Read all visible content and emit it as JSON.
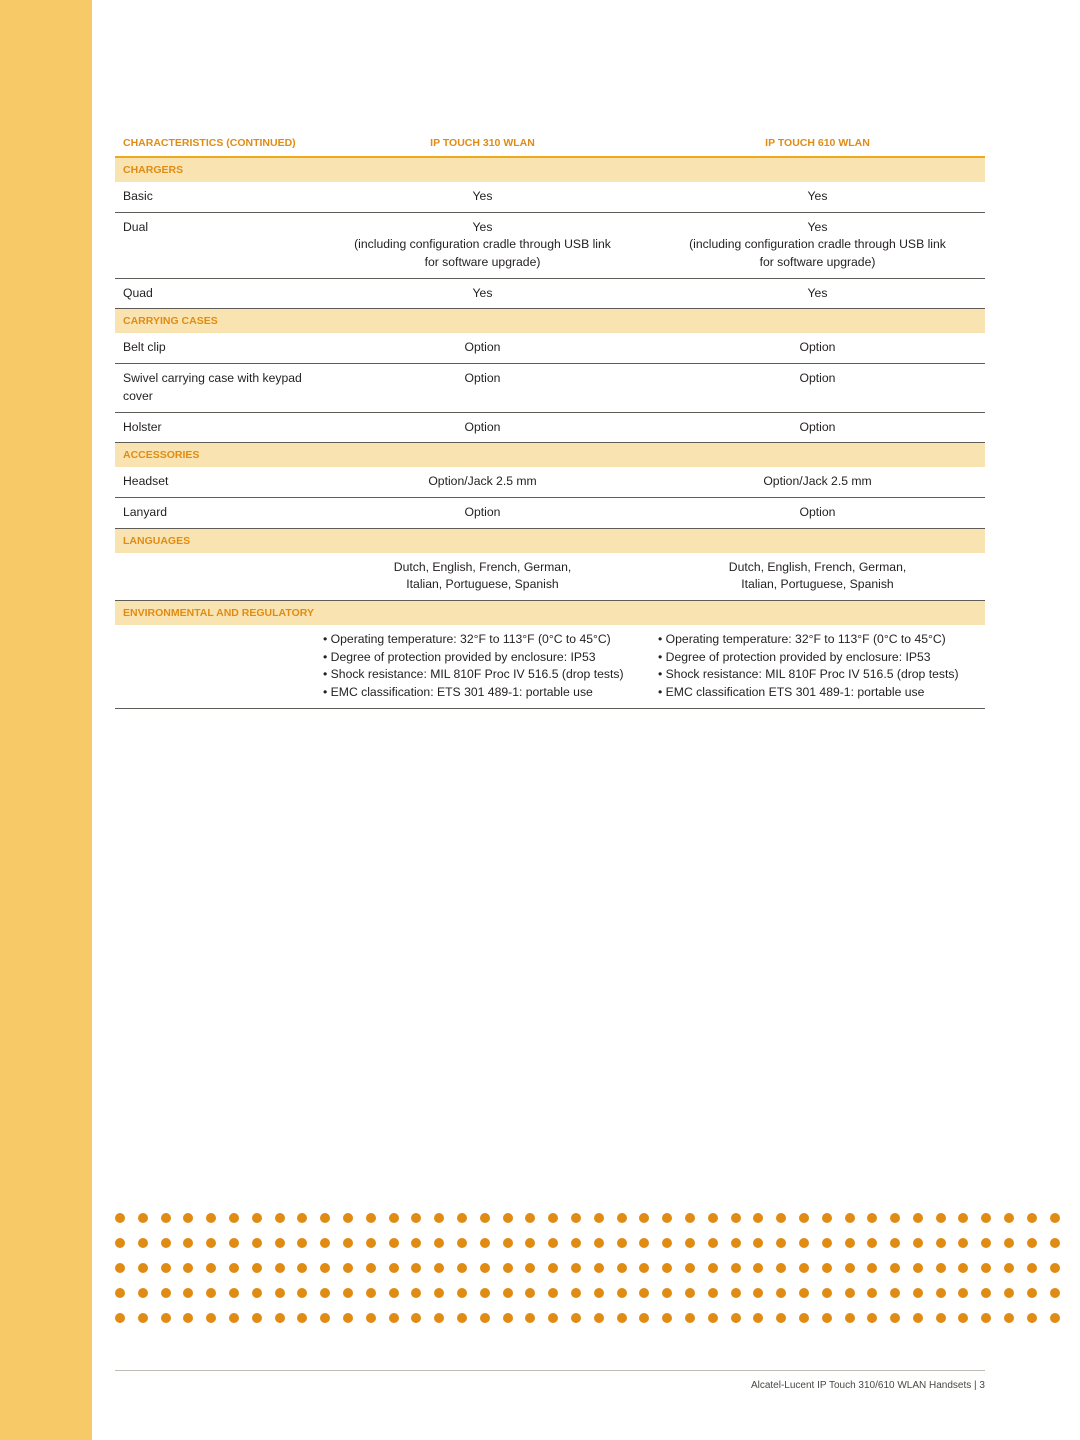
{
  "page": {
    "sidebar_color": "#f7c967",
    "accent_color": "#e08c14",
    "section_bg": "#f9e4b1",
    "rule_color": "#5f5b56",
    "header_rule_color": "#f0a91f",
    "dot_color": "#e08c14",
    "footer": "Alcatel-Lucent IP Touch 310/610 WLAN Handsets  |  3"
  },
  "table": {
    "headers": {
      "characteristics": "CHARACTERISTICS (continued)",
      "col_a": "IP TOUCH 310 WLAN",
      "col_b": "IP TOUCH 610 WLAN"
    },
    "sections": {
      "chargers": "CHARGERS",
      "carrying": "CARRYING CASES",
      "accessories": "ACCESSORIES",
      "languages": "LANGUAGES",
      "env": "ENVIRONMENTAL AND REGULATORY"
    },
    "rows": {
      "basic": {
        "label": "Basic",
        "a": "Yes",
        "b": "Yes"
      },
      "dual": {
        "label": "Dual",
        "a_line1": "Yes",
        "a_line2": "(including configuration cradle through USB link",
        "a_line3": "for software upgrade)",
        "b_line1": "Yes",
        "b_line2": "(including configuration cradle through USB link",
        "b_line3": "for software upgrade)"
      },
      "quad": {
        "label": "Quad",
        "a": "Yes",
        "b": "Yes"
      },
      "belt": {
        "label": "Belt clip",
        "a": "Option",
        "b": "Option"
      },
      "swivel": {
        "label": "Swivel carrying case with keypad cover",
        "a": "Option",
        "b": "Option"
      },
      "holster": {
        "label": "Holster",
        "a": "Option",
        "b": "Option"
      },
      "headset": {
        "label": "Headset",
        "a": "Option/Jack 2.5 mm",
        "b": "Option/Jack 2.5 mm"
      },
      "lanyard": {
        "label": "Lanyard",
        "a": "Option",
        "b": "Option"
      },
      "langs": {
        "a_line1": "Dutch, English, French, German,",
        "a_line2": "Italian, Portuguese, Spanish",
        "b_line1": "Dutch, English, French, German,",
        "b_line2": "Italian, Portuguese, Spanish"
      },
      "env": {
        "a1": "Operating temperature: 32°F to 113°F (0°C to 45°C)",
        "a2": "Degree of protection provided by enclosure: IP53",
        "a3": "Shock resistance: MIL 810F Proc IV 516.5 (drop tests)",
        "a4": "EMC classification: ETS 301 489-1: portable use",
        "b1": "Operating temperature: 32°F to 113°F (0°C to 45°C)",
        "b2": "Degree of protection provided by enclosure: IP53",
        "b3": "Shock resistance: MIL 810F Proc IV 516.5 (drop tests)",
        "b4": "EMC classification ETS 301 489-1: portable use"
      }
    }
  },
  "dots": {
    "rows": 5,
    "cols": 42
  }
}
